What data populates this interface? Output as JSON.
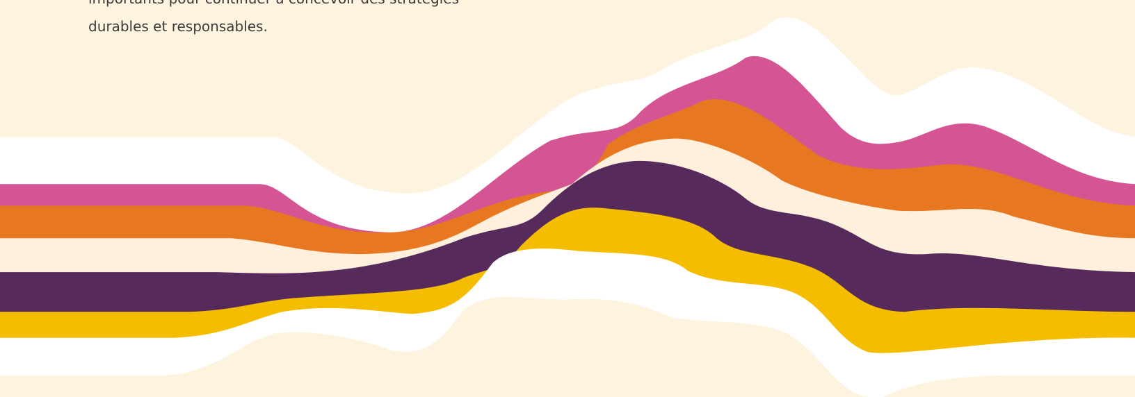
{
  "text": {
    "lines": [
      "importants pour continuer à concevoir des stratégies",
      "durables et responsables."
    ]
  }
}
